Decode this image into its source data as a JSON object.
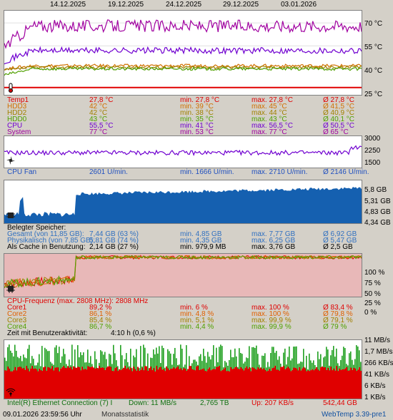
{
  "dates": [
    "14.12.2025",
    "19.12.2025",
    "24.12.2025",
    "29.12.2025",
    "03.01.2026"
  ],
  "temp_axis": [
    "70 °C",
    "55 °C",
    "40 °C",
    "25 °C"
  ],
  "temp_rows": [
    {
      "name": "Temp1",
      "cur": "27,8 °C",
      "min": "min. 27,8 °C",
      "max": "max. 27,8 °C",
      "avg": "Ø 27,8 °C",
      "color": "#e00000"
    },
    {
      "name": "HDD3",
      "cur": "42 °C",
      "min": "min. 39 °C",
      "max": "max. 45 °C",
      "avg": "Ø 41,5 °C",
      "color": "#d07000"
    },
    {
      "name": "HDD2",
      "cur": "42 °C",
      "min": "min. 38 °C",
      "max": "max. 44 °C",
      "avg": "Ø 40,9 °C",
      "color": "#a08000"
    },
    {
      "name": "HDD0",
      "cur": "43 °C",
      "min": "min. 35 °C",
      "max": "max. 43 °C",
      "avg": "Ø 40,1 °C",
      "color": "#50a000"
    },
    {
      "name": "CPU",
      "cur": "55,5 °C",
      "min": "min. 41 °C",
      "max": "max. 56,5 °C",
      "avg": "Ø 50,5 °C",
      "color": "#7000d0"
    },
    {
      "name": "System",
      "cur": "77 °C",
      "min": "min. 53 °C",
      "max": "max. 77 °C",
      "avg": "Ø 65 °C",
      "color": "#a000a0"
    }
  ],
  "fan_axis": [
    "3000",
    "2250",
    "1500"
  ],
  "fan_row": {
    "name": "CPU Fan",
    "cur": "2601 U/min.",
    "min": "min. 1666 U/min.",
    "max": "max. 2710 U/min.",
    "avg": "Ø 2146 U/min.",
    "color": "#2050c0"
  },
  "mem_axis": [
    "5,8 GB",
    "5,31 GB",
    "4,83 GB",
    "4,34 GB"
  ],
  "mem_title": "Belegter Speicher:",
  "mem_rows": [
    {
      "name": "Gesamt (von 11,85 GB):",
      "cur": "7,44 GB (63 %)",
      "min": "min. 4,85 GB",
      "max": "max. 7,77 GB",
      "avg": "Ø 6,92 GB",
      "color": "#3070c0"
    },
    {
      "name": "Physikalisch (von 7,85 GB):",
      "cur": "5,81 GB (74 %)",
      "min": "min. 4,35 GB",
      "max": "max. 6,25 GB",
      "avg": "Ø 5,47 GB",
      "color": "#3070c0"
    },
    {
      "name": "Als Cache in Benutzung:",
      "cur": "2,14 GB (27 %)",
      "min": "min. 979,9 MB",
      "max": "max. 3,76 GB",
      "avg": "Ø 2,5 GB",
      "color": "#000000"
    }
  ],
  "cpu_axis": [
    "100 %",
    "75 %",
    "50 %",
    "25 %",
    "0 %"
  ],
  "cpu_title": "CPU-Frequenz (max. 2808 MHz): 2808 MHz",
  "cpu_rows": [
    {
      "name": "Core1",
      "cur": "89,2 %",
      "min": "min. 6 %",
      "max": "max. 100 %",
      "avg": "Ø 83,4 %",
      "color": "#e00000"
    },
    {
      "name": "Core2",
      "cur": "86,1 %",
      "min": "min. 4,8 %",
      "max": "max. 100 %",
      "avg": "Ø 79,8 %",
      "color": "#e06000"
    },
    {
      "name": "Core3",
      "cur": "85,4 %",
      "min": "min. 5,1 %",
      "max": "max. 99,9 %",
      "avg": "Ø 79,1 %",
      "color": "#a08000"
    },
    {
      "name": "Core4",
      "cur": "86,7 %",
      "min": "min. 4,4 %",
      "max": "max. 99,9 %",
      "avg": "Ø 79 %",
      "color": "#50a000"
    }
  ],
  "activity": {
    "label": "Zeit mit Benutzeraktivität:",
    "value": "4:10 h (0,6 %)"
  },
  "net_axis": [
    "11 MB/s",
    "1,7 MB/s",
    "266 KB/s",
    "41 KB/s",
    "6 KB/s",
    "1 KB/s"
  ],
  "net_row": {
    "name": "Intel(R) Ethernet Connection (7) I",
    "down": "Down: 11 MB/s",
    "down_total": "2,765 TB",
    "up": "Up: 207 KB/s",
    "up_total": "542,44 GB"
  },
  "footer": {
    "timestamp": "09.01.2026 23:59:56 Uhr",
    "mode": "Monatsstatistik",
    "app": "WebTemp 3.39-pre1"
  }
}
